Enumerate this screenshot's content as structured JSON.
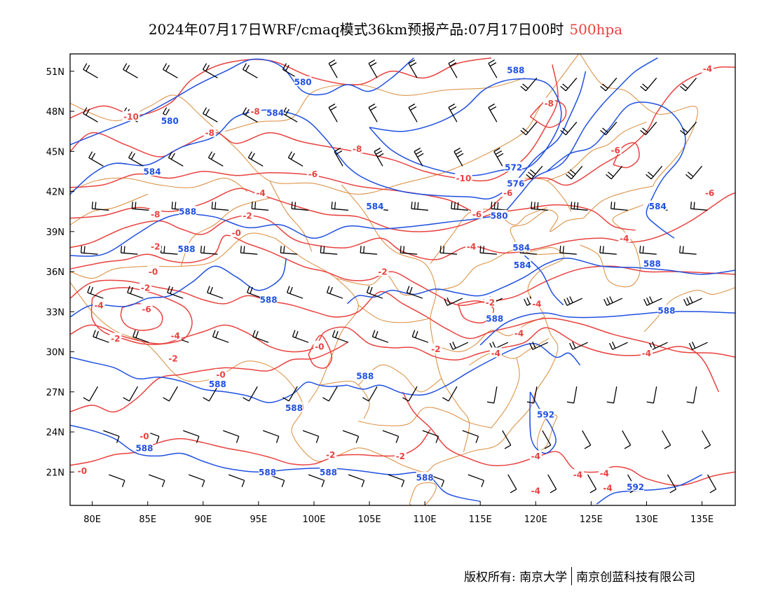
{
  "header": {
    "title": "2024年07月17日WRF/cmaq模式36km预报产品:07月17日00时",
    "level": "500hpa"
  },
  "map": {
    "lon_range": [
      78,
      138
    ],
    "lat_range": [
      18.5,
      52.3
    ],
    "x_ticks": [
      80,
      85,
      90,
      95,
      100,
      105,
      110,
      115,
      120,
      125,
      130,
      135
    ],
    "x_tick_labels": [
      "80E",
      "85E",
      "90E",
      "95E",
      "100E",
      "105E",
      "110E",
      "115E",
      "120E",
      "125E",
      "130E",
      "135E"
    ],
    "y_ticks": [
      51,
      48,
      45,
      42,
      39,
      36,
      33,
      30,
      27,
      24,
      21
    ],
    "y_tick_labels": [
      "51N",
      "48N",
      "45N",
      "42N",
      "39N",
      "36N",
      "33N",
      "30N",
      "27N",
      "24N",
      "21N"
    ],
    "colors": {
      "height_contour": "#2050e0",
      "temperature_contour": "#e8423f",
      "boundary": "#d98a3a",
      "wind_barb": "#000000",
      "level_text": "#e8423f"
    },
    "height_labels": [
      {
        "text": "580",
        "lon": 99,
        "lat": 50.2
      },
      {
        "text": "588",
        "lon": 118.2,
        "lat": 51.1
      },
      {
        "text": "584",
        "lon": 96.5,
        "lat": 47.9
      },
      {
        "text": "580",
        "lon": 87,
        "lat": 47.3
      },
      {
        "text": "584",
        "lon": 85.4,
        "lat": 43.5
      },
      {
        "text": "572",
        "lon": 118,
        "lat": 43.8
      },
      {
        "text": "576",
        "lon": 118.2,
        "lat": 42.6
      },
      {
        "text": "584",
        "lon": 105.5,
        "lat": 40.9
      },
      {
        "text": "580",
        "lon": 116.7,
        "lat": 40.2
      },
      {
        "text": "584",
        "lon": 131,
        "lat": 40.9
      },
      {
        "text": "588",
        "lon": 88.6,
        "lat": 40.5
      },
      {
        "text": "588",
        "lon": 88.5,
        "lat": 37.7
      },
      {
        "text": "584",
        "lon": 118.7,
        "lat": 37.8
      },
      {
        "text": "584",
        "lon": 118.8,
        "lat": 36.5
      },
      {
        "text": "588",
        "lon": 130.5,
        "lat": 36.6
      },
      {
        "text": "588",
        "lon": 95.9,
        "lat": 33.9
      },
      {
        "text": "588",
        "lon": 131.8,
        "lat": 33.1
      },
      {
        "text": "588",
        "lon": 116.3,
        "lat": 32.5
      },
      {
        "text": "588",
        "lon": 104.6,
        "lat": 28.2
      },
      {
        "text": "588",
        "lon": 91.3,
        "lat": 27.6
      },
      {
        "text": "588",
        "lon": 98.2,
        "lat": 25.8
      },
      {
        "text": "592",
        "lon": 120.9,
        "lat": 25.3
      },
      {
        "text": "588",
        "lon": 84.7,
        "lat": 22.8
      },
      {
        "text": "588",
        "lon": 95.8,
        "lat": 21
      },
      {
        "text": "588",
        "lon": 101.3,
        "lat": 21
      },
      {
        "text": "588",
        "lon": 110,
        "lat": 20.6
      },
      {
        "text": "592",
        "lon": 129,
        "lat": 19.9
      }
    ],
    "temperature_labels": [
      {
        "text": "-4",
        "lon": 135.5,
        "lat": 51.2
      },
      {
        "text": "-8",
        "lon": 121.2,
        "lat": 48.6
      },
      {
        "text": "-8",
        "lon": 94.7,
        "lat": 48
      },
      {
        "text": "-10",
        "lon": 83.5,
        "lat": 47.6
      },
      {
        "text": "-8",
        "lon": 90.6,
        "lat": 46.4
      },
      {
        "text": "-8",
        "lon": 103.9,
        "lat": 45.2
      },
      {
        "text": "-6",
        "lon": 127.2,
        "lat": 45.1
      },
      {
        "text": "-6",
        "lon": 99.9,
        "lat": 43.3
      },
      {
        "text": "-10",
        "lon": 113.5,
        "lat": 43
      },
      {
        "text": "-6",
        "lon": 117.5,
        "lat": 41.9
      },
      {
        "text": "-6",
        "lon": 135.7,
        "lat": 41.9
      },
      {
        "text": "-4",
        "lon": 95.2,
        "lat": 41.9
      },
      {
        "text": "-8",
        "lon": 85.7,
        "lat": 40.3
      },
      {
        "text": "-6",
        "lon": 114.7,
        "lat": 40.3
      },
      {
        "text": "-2",
        "lon": 94,
        "lat": 40.2
      },
      {
        "text": "-0",
        "lon": 93,
        "lat": 38.9
      },
      {
        "text": "-4",
        "lon": 128,
        "lat": 38.5
      },
      {
        "text": "-4",
        "lon": 114.2,
        "lat": 37.9
      },
      {
        "text": "-2",
        "lon": 85.7,
        "lat": 37.9
      },
      {
        "text": "-2",
        "lon": 106.2,
        "lat": 36
      },
      {
        "text": "-0",
        "lon": 85.5,
        "lat": 36
      },
      {
        "text": "-2",
        "lon": 84.8,
        "lat": 34.8
      },
      {
        "text": "-4",
        "lon": 80.6,
        "lat": 33.5
      },
      {
        "text": "-6",
        "lon": 84.9,
        "lat": 33.2
      },
      {
        "text": "-2",
        "lon": 115.9,
        "lat": 33.7
      },
      {
        "text": "-4",
        "lon": 120.1,
        "lat": 33.6
      },
      {
        "text": "-4",
        "lon": 118.5,
        "lat": 31.4
      },
      {
        "text": "-4",
        "lon": 87.5,
        "lat": 31.2
      },
      {
        "text": "-2",
        "lon": 82.1,
        "lat": 31
      },
      {
        "text": "-0",
        "lon": 100.5,
        "lat": 30.4
      },
      {
        "text": "-2",
        "lon": 111,
        "lat": 30.2
      },
      {
        "text": "-4",
        "lon": 116.4,
        "lat": 29.9
      },
      {
        "text": "-4",
        "lon": 130,
        "lat": 29.9
      },
      {
        "text": "-2",
        "lon": 87.3,
        "lat": 29.5
      },
      {
        "text": "-0",
        "lon": 91.6,
        "lat": 28.3
      },
      {
        "text": "-0",
        "lon": 84.7,
        "lat": 23.7
      },
      {
        "text": "-2",
        "lon": 101.5,
        "lat": 22.3
      },
      {
        "text": "-2",
        "lon": 107.8,
        "lat": 22.2
      },
      {
        "text": "-4",
        "lon": 120,
        "lat": 22.2
      },
      {
        "text": "-0",
        "lon": 79.1,
        "lat": 21.1
      },
      {
        "text": "-4",
        "lon": 123.8,
        "lat": 20.8
      },
      {
        "text": "-4",
        "lon": 126.2,
        "lat": 20.9
      },
      {
        "text": "-4",
        "lon": 126.5,
        "lat": 19.8
      },
      {
        "text": "-4",
        "lon": 120,
        "lat": 19.6
      }
    ]
  },
  "footer": {
    "copyright": "版权所有: 南京大学",
    "company": "南京创蓝科技有限公司"
  }
}
